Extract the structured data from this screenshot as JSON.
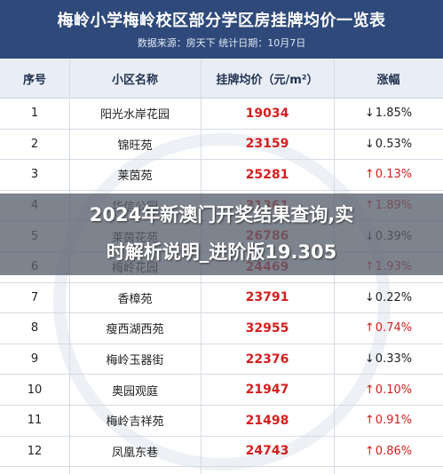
{
  "header": {
    "title": "梅岭小学梅岭校区部分学区房挂牌均价一览表",
    "subtitle": "数据来源：房天下   统计日期：10月7日"
  },
  "table": {
    "columns": [
      "序号",
      "小区名称",
      "挂牌均价（元/m²）",
      "涨幅"
    ],
    "rows": [
      {
        "no": "1",
        "name": "阳光水岸花园",
        "price": "19034",
        "arrow": "↓",
        "change": "1.85%",
        "dir": "down"
      },
      {
        "no": "2",
        "name": "锦旺苑",
        "price": "23159",
        "arrow": "↓",
        "change": "0.53%",
        "dir": "down"
      },
      {
        "no": "3",
        "name": "莱茵苑",
        "price": "25281",
        "arrow": "↑",
        "change": "0.13%",
        "dir": "up"
      },
      {
        "no": "4",
        "name": "华信公园",
        "price": "31361",
        "arrow": "↑",
        "change": "1.89%",
        "dir": "up"
      },
      {
        "no": "5",
        "name": "莱茵花苑",
        "price": "26786",
        "arrow": "↓",
        "change": "0.39%",
        "dir": "down"
      },
      {
        "no": "6",
        "name": "梅岭花园",
        "price": "24469",
        "arrow": "↑",
        "change": "1.93%",
        "dir": "up"
      },
      {
        "no": "7",
        "name": "香樟苑",
        "price": "23791",
        "arrow": "↓",
        "change": "0.22%",
        "dir": "down"
      },
      {
        "no": "8",
        "name": "瘦西湖西苑",
        "price": "32955",
        "arrow": "↑",
        "change": "0.74%",
        "dir": "up"
      },
      {
        "no": "9",
        "name": "梅岭玉器街",
        "price": "22376",
        "arrow": "↓",
        "change": "0.33%",
        "dir": "down"
      },
      {
        "no": "10",
        "name": "奥园观庭",
        "price": "21947",
        "arrow": "↑",
        "change": "0.10%",
        "dir": "up"
      },
      {
        "no": "11",
        "name": "梅岭吉祥苑",
        "price": "21498",
        "arrow": "↑",
        "change": "0.91%",
        "dir": "up"
      },
      {
        "no": "12",
        "name": "凤凰东巷",
        "price": "24743",
        "arrow": "↑",
        "change": "0.86%",
        "dir": "up"
      }
    ]
  },
  "banner": {
    "line1": "2024年新澳门开奖结果查询,实",
    "line2": "时解析说明_进阶版19.305"
  },
  "colors": {
    "header_bg": "#2f4a7a",
    "price": "#d21f1f",
    "up": "#d21f1f",
    "down": "#222222"
  }
}
